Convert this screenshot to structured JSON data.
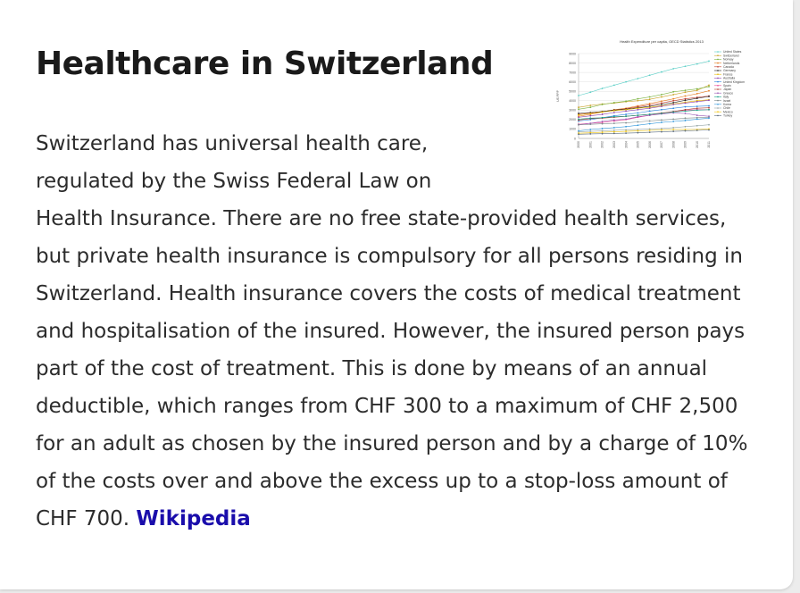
{
  "article": {
    "title": "Healthcare in Switzerland",
    "body": "Switzerland has universal health care, regulated by the Swiss Federal Law on Health Insurance. There are no free state-provided health services, but private health insurance is compulsory for all persons residing in Switzerland. Health insurance covers the costs of medical treatment and hospitalisation of the insured. However, the insured person pays part of the cost of treatment. This is done by means of an annual deductible, which ranges from CHF 300 to a maximum of CHF 2,500 for an adult as chosen by the insured person and by a charge of 10% of the costs over and above the excess up to a stop-loss amount of CHF 700.",
    "source_label": "Wikipedia"
  },
  "thumbnail": {
    "chart_data": {
      "type": "line",
      "title": "Health Expenditure per capita, OECD Statistics 2013",
      "xlabel": "",
      "ylabel": "US PPP",
      "ylim": [
        0,
        9000
      ],
      "yticks": [
        "9000",
        "8000",
        "7000",
        "6000",
        "5000",
        "4000",
        "3000",
        "2000",
        "1000",
        "0"
      ],
      "categories": [
        "2000",
        "2001",
        "2002",
        "2003",
        "2004",
        "2005",
        "2006",
        "2007",
        "2008",
        "2009",
        "2010",
        "2011"
      ],
      "legend_position": "right",
      "series": [
        {
          "name": "United States",
          "color": "#5fd0c8",
          "values": [
            4550,
            4900,
            5300,
            5650,
            6000,
            6350,
            6700,
            7050,
            7400,
            7650,
            7900,
            8200
          ]
        },
        {
          "name": "Switzerland",
          "color": "#c9a227",
          "values": [
            3300,
            3500,
            3650,
            3750,
            3900,
            4000,
            4150,
            4400,
            4650,
            4900,
            5100,
            5650
          ]
        },
        {
          "name": "Norway",
          "color": "#7cb342",
          "values": [
            3100,
            3300,
            3600,
            3800,
            3950,
            4200,
            4400,
            4650,
            4950,
            5100,
            5250,
            5500
          ]
        },
        {
          "name": "Netherlands",
          "color": "#e67e22",
          "values": [
            2350,
            2550,
            2800,
            3050,
            3200,
            3450,
            3700,
            3950,
            4200,
            4500,
            4750,
            5050
          ]
        },
        {
          "name": "Canada",
          "color": "#c0392b",
          "values": [
            2550,
            2700,
            2850,
            3000,
            3150,
            3350,
            3550,
            3750,
            4000,
            4200,
            4350,
            4500
          ]
        },
        {
          "name": "Germany",
          "color": "#222222",
          "values": [
            2650,
            2750,
            2850,
            3000,
            3100,
            3250,
            3400,
            3600,
            3800,
            4050,
            4250,
            4450
          ]
        },
        {
          "name": "France",
          "color": "#e6b800",
          "values": [
            2500,
            2650,
            2800,
            2950,
            3050,
            3200,
            3300,
            3450,
            3650,
            3850,
            4000,
            4100
          ]
        },
        {
          "name": "Australia",
          "color": "#8e44ad",
          "values": [
            2250,
            2400,
            2550,
            2750,
            2900,
            3050,
            3200,
            3400,
            3600,
            3750,
            3900,
            4050
          ]
        },
        {
          "name": "United Kingdom",
          "color": "#2e86de",
          "values": [
            1850,
            2000,
            2200,
            2400,
            2550,
            2700,
            2900,
            3050,
            3200,
            3350,
            3400,
            3450
          ]
        },
        {
          "name": "Spain",
          "color": "#e84393",
          "values": [
            1500,
            1600,
            1700,
            1850,
            2000,
            2250,
            2450,
            2650,
            2850,
            3000,
            3050,
            3050
          ]
        },
        {
          "name": "Japan",
          "color": "#b03a2e",
          "values": [
            1950,
            2100,
            2150,
            2250,
            2350,
            2450,
            2550,
            2700,
            2850,
            3050,
            3200,
            3250
          ]
        },
        {
          "name": "Greece",
          "color": "#9b59b6",
          "values": [
            1450,
            1600,
            1800,
            1950,
            2050,
            2300,
            2450,
            2600,
            2700,
            2650,
            2450,
            2350
          ]
        },
        {
          "name": "Italy",
          "color": "#16a085",
          "values": [
            2050,
            2150,
            2200,
            2300,
            2350,
            2450,
            2550,
            2650,
            2800,
            2900,
            3000,
            3050
          ]
        },
        {
          "name": "Israel",
          "color": "#7f8c8d",
          "values": [
            1450,
            1500,
            1550,
            1600,
            1650,
            1750,
            1850,
            1950,
            2050,
            2150,
            2200,
            2250
          ]
        },
        {
          "name": "Korea",
          "color": "#3498db",
          "values": [
            800,
            950,
            1050,
            1150,
            1250,
            1400,
            1550,
            1700,
            1800,
            1900,
            2050,
            2150
          ]
        },
        {
          "name": "Chile",
          "color": "#95a5a6",
          "values": [
            700,
            750,
            800,
            850,
            900,
            950,
            1000,
            1050,
            1150,
            1250,
            1350,
            1450
          ]
        },
        {
          "name": "Mexico",
          "color": "#f1c40f",
          "values": [
            550,
            600,
            650,
            700,
            750,
            800,
            850,
            900,
            950,
            950,
            950,
            1000
          ]
        },
        {
          "name": "Turkey",
          "color": "#5d6d7e",
          "values": [
            450,
            480,
            500,
            530,
            560,
            600,
            650,
            700,
            750,
            800,
            850,
            900
          ]
        }
      ]
    }
  }
}
